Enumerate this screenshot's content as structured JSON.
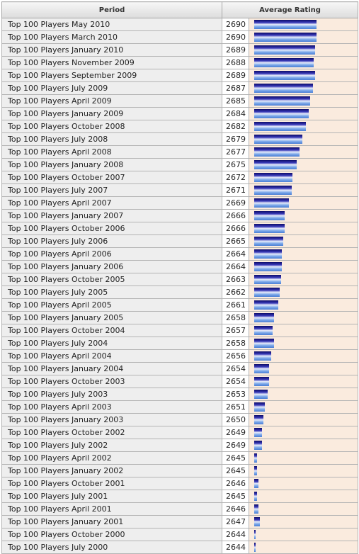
{
  "table": {
    "header_period": "Period",
    "header_rating": "Average Rating"
  },
  "chart_data": {
    "type": "bar",
    "orientation": "horizontal",
    "value_axis_range": [
      2643,
      2691
    ],
    "categories": [
      "Top 100 Players May 2010",
      "Top 100 Players March 2010",
      "Top 100 Players January 2010",
      "Top 100 Players November 2009",
      "Top 100 Players September 2009",
      "Top 100 Players July 2009",
      "Top 100 Players April 2009",
      "Top 100 Players January 2009",
      "Top 100 Players October 2008",
      "Top 100 Players July 2008",
      "Top 100 Players April 2008",
      "Top 100 Players January 2008",
      "Top 100 Players October 2007",
      "Top 100 Players July 2007",
      "Top 100 Players April 2007",
      "Top 100 Players January 2007",
      "Top 100 Players October 2006",
      "Top 100 Players July 2006",
      "Top 100 Players April 2006",
      "Top 100 Players January 2006",
      "Top 100 Players October 2005",
      "Top 100 Players July 2005",
      "Top 100 Players April 2005",
      "Top 100 Players January 2005",
      "Top 100 Players October 2004",
      "Top 100 Players July 2004",
      "Top 100 Players April 2004",
      "Top 100 Players January 2004",
      "Top 100 Players October 2003",
      "Top 100 Players July 2003",
      "Top 100 Players April 2003",
      "Top 100 Players January 2003",
      "Top 100 Players October 2002",
      "Top 100 Players July 2002",
      "Top 100 Players April 2002",
      "Top 100 Players January 2002",
      "Top 100 Players October 2001",
      "Top 100 Players July 2001",
      "Top 100 Players April 2001",
      "Top 100 Players January 2001",
      "Top 100 Players October 2000",
      "Top 100 Players July 2000"
    ],
    "values": [
      2690,
      2690,
      2689,
      2688,
      2689,
      2687,
      2685,
      2684,
      2682,
      2679,
      2677,
      2675,
      2672,
      2671,
      2669,
      2666,
      2666,
      2665,
      2664,
      2664,
      2663,
      2662,
      2661,
      2658,
      2657,
      2658,
      2656,
      2654,
      2654,
      2653,
      2651,
      2650,
      2649,
      2649,
      2645,
      2645,
      2646,
      2645,
      2646,
      2647,
      2644,
      2644
    ],
    "colors": {
      "bar_dark": "#0c0c6a",
      "bar_light": "#7aa6e8",
      "rating_background": "#faebde",
      "period_background": "#eeeeee"
    }
  }
}
